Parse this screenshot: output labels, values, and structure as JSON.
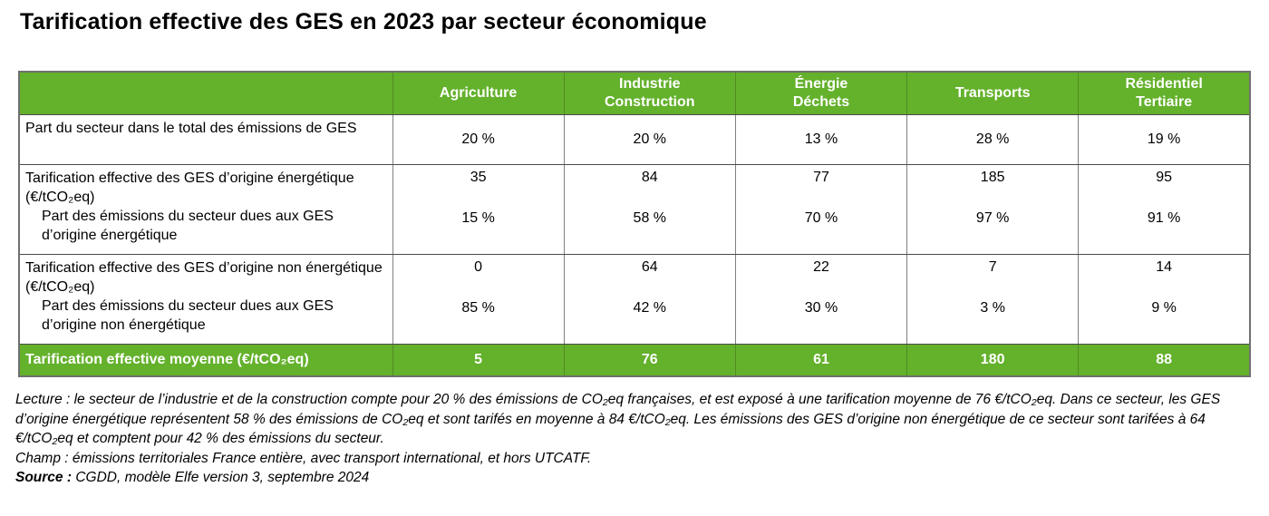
{
  "title": "Tarification effective des GES en 2023 par secteur économique",
  "colors": {
    "header_green": "#64B12C",
    "header_text": "#FFFFFF",
    "border_gray": "#6F6F6F"
  },
  "table": {
    "header": {
      "corner": "",
      "columns": [
        "Agriculture",
        "Industrie\nConstruction",
        "Énergie\nDéchets",
        "Transports",
        "Résidentiel\nTertiaire"
      ]
    },
    "rows": [
      {
        "label": "Part du secteur dans le total des émissions de GES",
        "values": [
          "20 %",
          "20 %",
          "13 %",
          "28 %",
          "19 %"
        ]
      },
      {
        "label_main": "Tarification effective des GES d’origine énergétique (€/tCO₂eq)",
        "label_sub": "Part des émissions du secteur dues aux GES d’origine énergétique",
        "values_main": [
          "35",
          "84",
          "77",
          "185",
          "95"
        ],
        "values_sub": [
          "15 %",
          "58 %",
          "70 %",
          "97 %",
          "91 %"
        ]
      },
      {
        "label_main": "Tarification effective des GES d’origine non énergétique (€/tCO₂eq)",
        "label_sub": "Part des émissions du secteur dues aux GES d’origine non énergétique",
        "values_main": [
          "0",
          "64",
          "22",
          "7",
          "14"
        ],
        "values_sub": [
          "85 %",
          "42 %",
          "30 %",
          "3 %",
          "9 %"
        ]
      }
    ],
    "footer": {
      "label": "Tarification effective moyenne (€/tCO₂eq)",
      "values": [
        "5",
        "76",
        "61",
        "180",
        "88"
      ]
    }
  },
  "notes": {
    "lecture": "Lecture : le secteur de l’industrie et de la construction compte pour 20 % des émissions de CO₂eq françaises, et est exposé à une tarification moyenne de 76 €/tCO₂eq. Dans ce secteur, les GES d’origine énergétique représentent 58 % des émissions de CO₂eq et sont tarifés en moyenne à 84 €/tCO₂eq. Les émissions des GES d’origine non énergétique de ce secteur sont tarifées à 64 €/tCO₂eq et comptent pour 42 % des émissions du secteur.",
    "champ": "Champ : émissions territoriales France entière, avec transport international, et hors UTCATF.",
    "source_label": "Source :",
    "source_text": " CGDD, modèle Elfe version 3, septembre 2024"
  },
  "chart_data": {
    "type": "table",
    "title": "Tarification effective des GES en 2023 par secteur économique",
    "categories": [
      "Agriculture",
      "Industrie Construction",
      "Énergie Déchets",
      "Transports",
      "Résidentiel Tertiaire"
    ],
    "series": [
      {
        "name": "Part du secteur dans le total des émissions de GES (%)",
        "values": [
          20,
          20,
          13,
          28,
          19
        ]
      },
      {
        "name": "Tarification effective des GES d’origine énergétique (€/tCO₂eq)",
        "values": [
          35,
          84,
          77,
          185,
          95
        ]
      },
      {
        "name": "Part des émissions du secteur dues aux GES d’origine énergétique (%)",
        "values": [
          15,
          58,
          70,
          97,
          91
        ]
      },
      {
        "name": "Tarification effective des GES d’origine non énergétique (€/tCO₂eq)",
        "values": [
          0,
          64,
          22,
          7,
          14
        ]
      },
      {
        "name": "Part des émissions du secteur dues aux GES d’origine non énergétique (%)",
        "values": [
          85,
          42,
          30,
          3,
          9
        ]
      },
      {
        "name": "Tarification effective moyenne (€/tCO₂eq)",
        "values": [
          5,
          76,
          61,
          180,
          88
        ]
      }
    ]
  }
}
